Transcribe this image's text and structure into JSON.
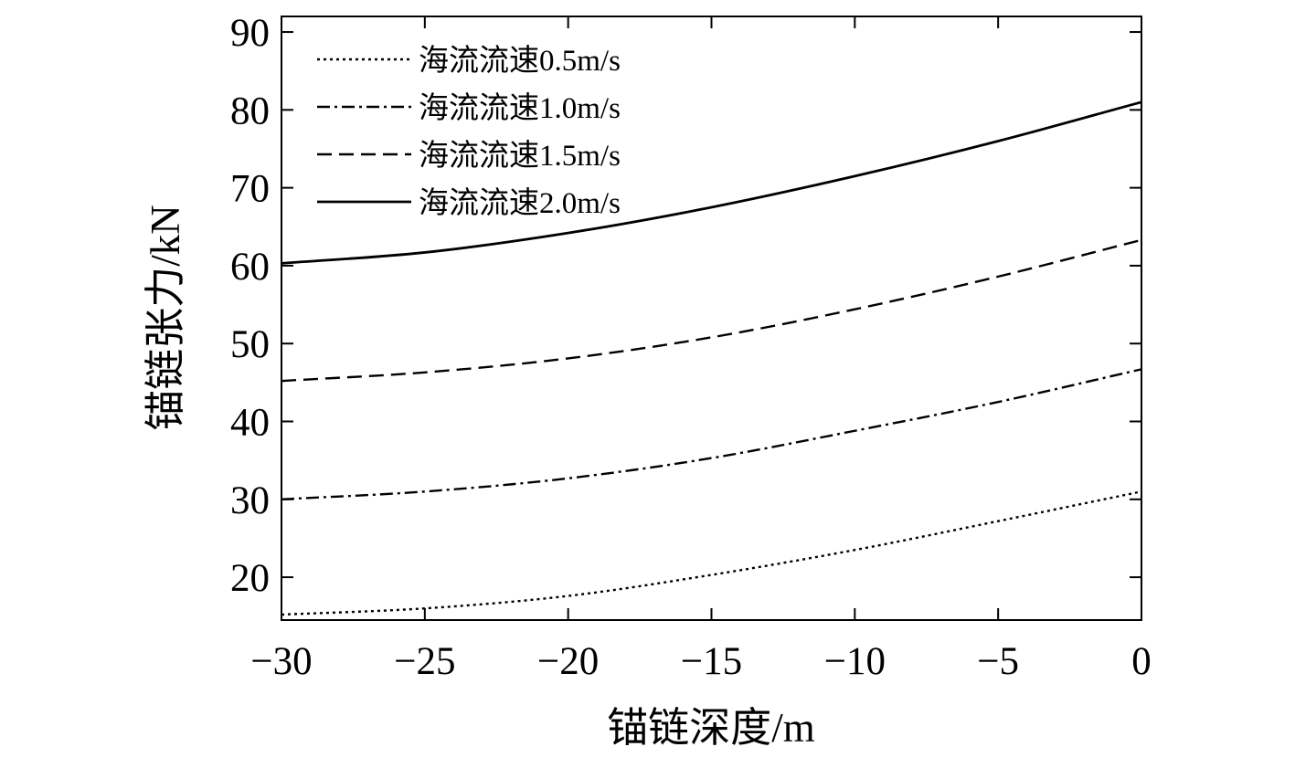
{
  "chart_data": {
    "type": "line",
    "xlabel": "锚链深度/m",
    "ylabel": "锚链张力/kN",
    "xlim": [
      -30,
      0
    ],
    "ylim": [
      14.5,
      92
    ],
    "x_ticks": [
      -30,
      -25,
      -20,
      -15,
      -10,
      -5,
      0
    ],
    "x_tick_labels": [
      "−30",
      "−25",
      "−20",
      "−15",
      "−10",
      "−5",
      "0"
    ],
    "y_ticks": [
      20,
      30,
      40,
      50,
      60,
      70,
      80,
      90
    ],
    "y_tick_labels": [
      "20",
      "30",
      "40",
      "50",
      "60",
      "70",
      "80",
      "90"
    ],
    "grid": false,
    "legend_position": "top-left",
    "x": [
      -30,
      -25,
      -20,
      -15,
      -10,
      -5,
      0
    ],
    "series": [
      {
        "name": "海流流速0.5m/s",
        "style": "dotted",
        "values": [
          15.2,
          16.0,
          17.6,
          20.3,
          23.5,
          27.2,
          31.0
        ]
      },
      {
        "name": "海流流速1.0m/s",
        "style": "dashdot",
        "values": [
          30.0,
          31.0,
          32.7,
          35.3,
          38.8,
          42.5,
          46.7
        ]
      },
      {
        "name": "海流流速1.5m/s",
        "style": "dashed",
        "values": [
          45.2,
          46.3,
          48.1,
          50.8,
          54.4,
          58.6,
          63.3
        ]
      },
      {
        "name": "海流流速2.0m/s",
        "style": "solid",
        "values": [
          60.3,
          61.7,
          64.2,
          67.5,
          71.5,
          76.0,
          81.0
        ]
      }
    ],
    "colors": {
      "line": "#000000",
      "frame": "#000000",
      "background": "#ffffff"
    }
  }
}
